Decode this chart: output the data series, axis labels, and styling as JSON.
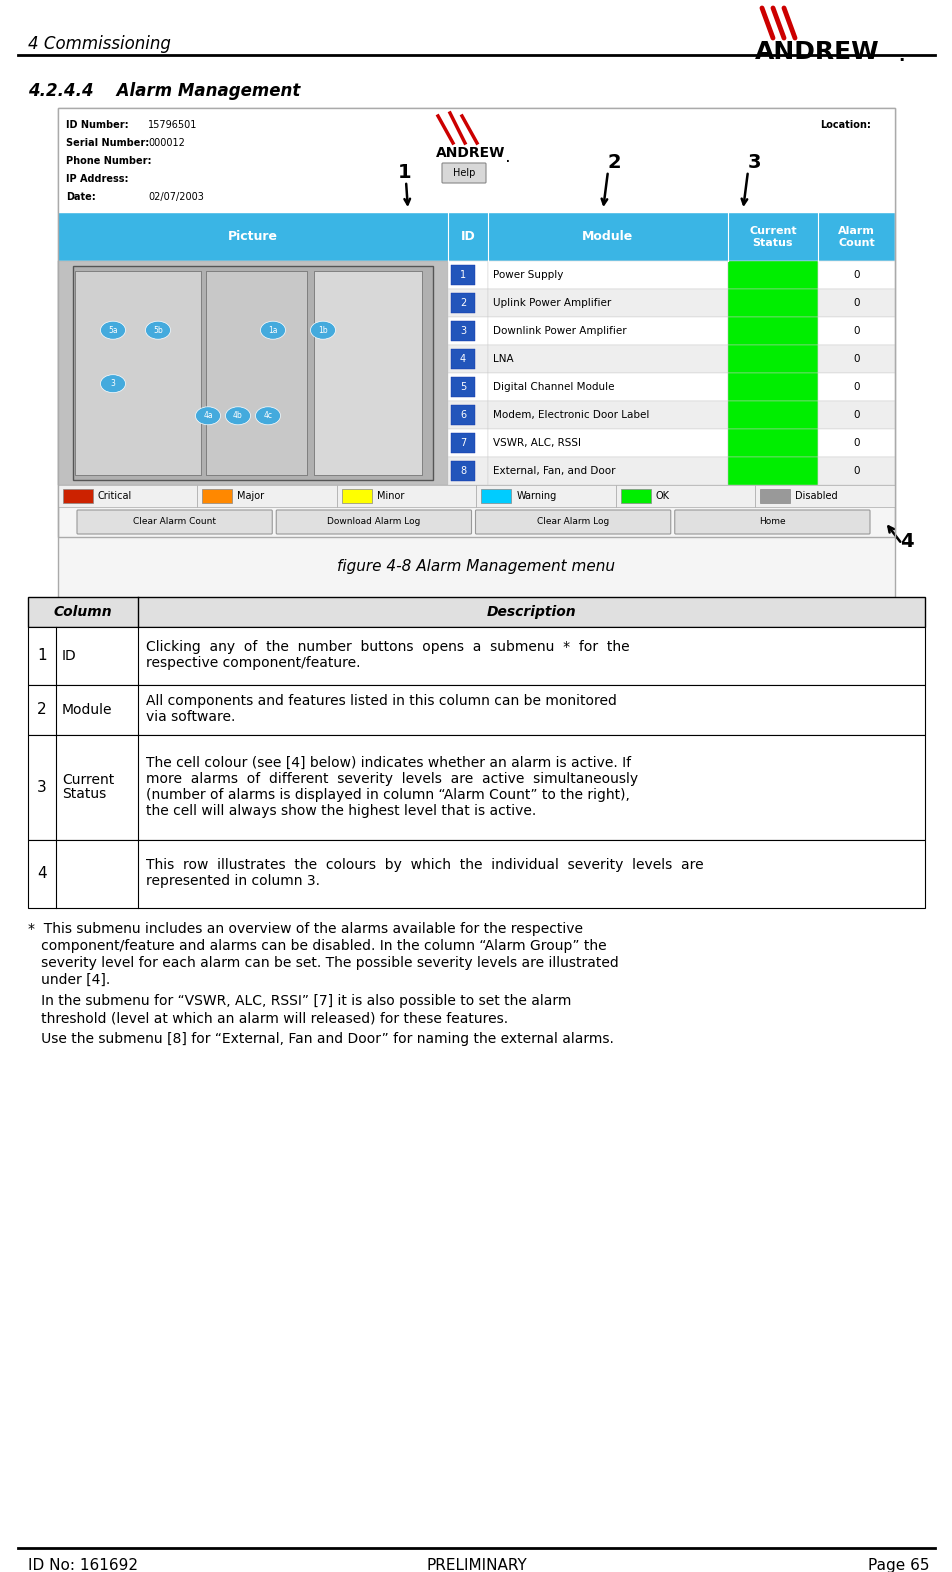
{
  "header_left": "4 Commissioning",
  "section_title": "4.2.4.4    Alarm Management",
  "figure_caption": "figure 4-8 Alarm Management menu",
  "footer_left": "ID No: 161692",
  "footer_center": "PRELIMINARY",
  "footer_right": "Page 65",
  "screen_modules": [
    "Power Supply",
    "Uplink Power Amplifier",
    "Downlink Power Amplifier",
    "LNA",
    "Digital Channel Module",
    "Modem, Electronic Door Label",
    "VSWR, ALC, RSSI",
    "External, Fan, and Door"
  ],
  "table_rows": [
    {
      "col": "1",
      "row_label": "ID",
      "desc_line1": "Clicking  any  of  the  number  buttons  opens  a  submenu  *  for  the",
      "desc_line2": "respective component/feature.",
      "desc_line3": ""
    },
    {
      "col": "2",
      "row_label": "Module",
      "desc_line1": "All components and features listed in this column can be monitored",
      "desc_line2": "via software.",
      "desc_line3": ""
    },
    {
      "col": "3",
      "row_label": "Current\nStatus",
      "desc_line1": "The cell colour (see [4] below) indicates whether an alarm is active. If",
      "desc_line2": "more  alarms  of  different  severity  levels  are  active  simultaneously",
      "desc_line3": "(number of alarms is displayed in column “Alarm Count” to the right),",
      "desc_line4": "the cell will always show the highest level that is active."
    },
    {
      "col": "4",
      "row_label": "",
      "desc_line1": "This  row  illustrates  the  colours  by  which  the  individual  severity  levels  are",
      "desc_line2": "represented in column 3.",
      "desc_line3": ""
    }
  ],
  "footnote_para1_lines": [
    "*  This submenu includes an overview of the alarms available for the respective",
    "   component/feature and alarms can be disabled. In the column “Alarm Group” the",
    "   severity level for each alarm can be set. The possible severity levels are illustrated",
    "   under [4]."
  ],
  "footnote_para2_lines": [
    "   In the submenu for “VSWR, ALC, RSSI” [7] it is also possible to set the alarm",
    "   threshold (level at which an alarm will released) for these features."
  ],
  "footnote_para3_lines": [
    "   Use the submenu [8] for “External, Fan and Door” for naming the external alarms."
  ],
  "header_bg": "#3ab5e5",
  "green_color": "#00ee00",
  "red_color": "#cc2200",
  "orange_color": "#ff8800",
  "yellow_color": "#ffff00",
  "cyan_color": "#00ccff",
  "gray_color": "#999999",
  "legend_items": [
    {
      "name": "Critical",
      "color": "#cc2200"
    },
    {
      "name": "Major",
      "color": "#ff8800"
    },
    {
      "name": "Minor",
      "color": "#ffff00"
    },
    {
      "name": "Warning",
      "color": "#00ccff"
    },
    {
      "name": "OK",
      "color": "#00ee00"
    },
    {
      "name": "Disabled",
      "color": "#999999"
    }
  ]
}
